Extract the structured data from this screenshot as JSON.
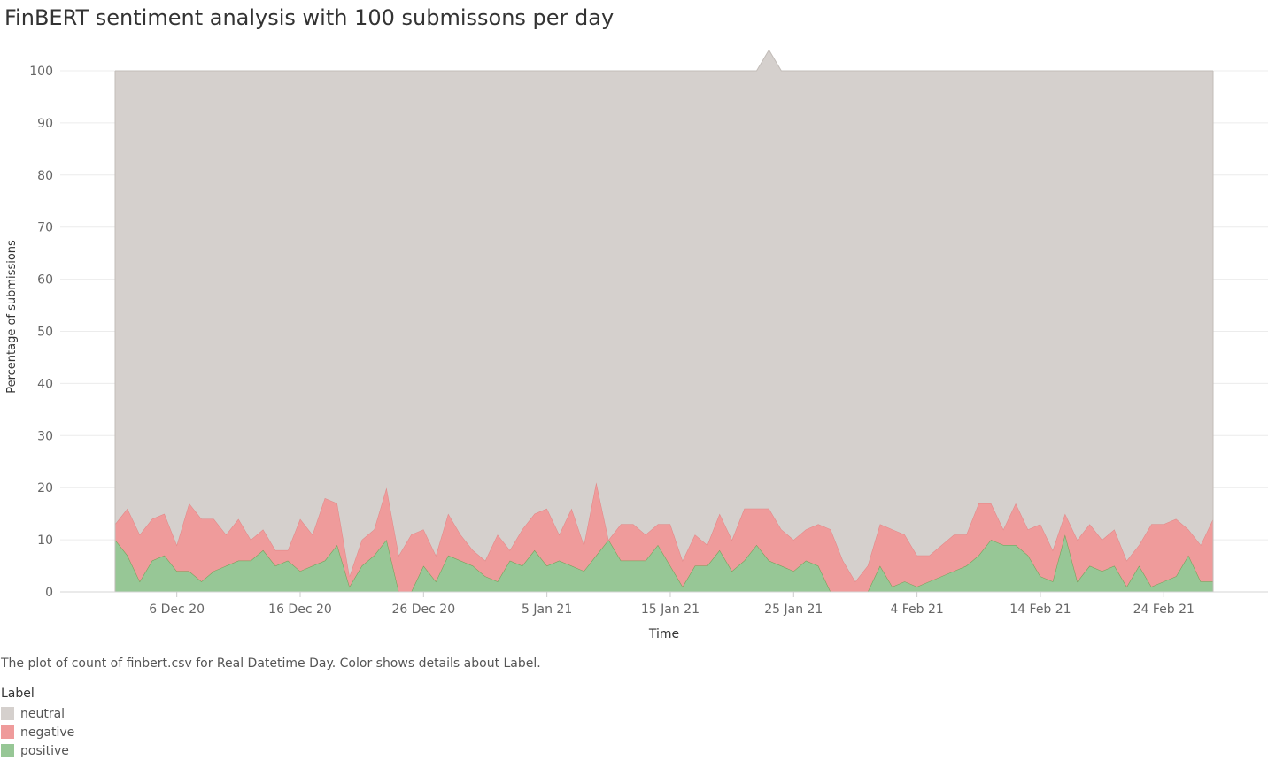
{
  "title": "FinBERT sentiment analysis with 100 submissons per day",
  "caption": "The plot of count of finbert.csv for Real Datetime Day.  Color shows details about Label.",
  "legend": {
    "title": "Label",
    "items": [
      {
        "label": "neutral",
        "color": "#d5d0cd"
      },
      {
        "label": "negative",
        "color": "#ef9b9b"
      },
      {
        "label": "positive",
        "color": "#97c796"
      }
    ]
  },
  "chart_data": {
    "type": "area",
    "stacking": "stacked, sums to 100%",
    "xlabel": "Time",
    "ylabel": "Percentage of submissions",
    "ylim": [
      0,
      100
    ],
    "x_range": [
      "2020-12-01",
      "2021-02-28"
    ],
    "yticks": [
      0,
      10,
      20,
      30,
      40,
      50,
      60,
      70,
      80,
      90,
      100
    ],
    "xticks": [
      {
        "date": "2020-12-06",
        "label": "6 Dec 20"
      },
      {
        "date": "2020-12-16",
        "label": "16 Dec 20"
      },
      {
        "date": "2020-12-26",
        "label": "26 Dec 20"
      },
      {
        "date": "2021-01-05",
        "label": "5 Jan 21"
      },
      {
        "date": "2021-01-15",
        "label": "15 Jan 21"
      },
      {
        "date": "2021-01-25",
        "label": "25 Jan 21"
      },
      {
        "date": "2021-02-04",
        "label": "4 Feb 21"
      },
      {
        "date": "2021-02-14",
        "label": "14 Feb 21"
      },
      {
        "date": "2021-02-24",
        "label": "24 Feb 21"
      }
    ],
    "grid": true,
    "legend_position": "bottom-left",
    "series": [
      {
        "name": "positive",
        "color": "#97c796",
        "values": [
          10,
          7,
          2,
          6,
          7,
          4,
          4,
          2,
          4,
          5,
          6,
          6,
          8,
          5,
          6,
          4,
          5,
          6,
          9,
          1,
          5,
          7,
          10,
          0,
          0,
          5,
          2,
          7,
          6,
          5,
          3,
          2,
          6,
          5,
          8,
          5,
          6,
          5,
          4,
          7,
          10,
          6,
          6,
          6,
          9,
          5,
          1,
          5,
          5,
          8,
          4,
          6,
          9,
          6,
          5,
          4,
          6,
          5,
          0,
          0,
          0,
          0,
          5,
          1,
          2,
          1,
          2,
          3,
          4,
          5,
          7,
          10,
          9,
          9,
          7,
          3,
          2,
          11,
          2,
          5,
          4,
          5,
          1,
          5,
          1,
          2,
          3,
          7,
          2,
          2
        ]
      },
      {
        "name": "negative",
        "color": "#ef9b9b",
        "values": [
          3,
          9,
          9,
          8,
          8,
          5,
          13,
          12,
          10,
          6,
          8,
          4,
          4,
          3,
          2,
          10,
          6,
          12,
          8,
          2,
          5,
          5,
          10,
          7,
          11,
          7,
          5,
          8,
          5,
          3,
          3,
          9,
          2,
          7,
          7,
          11,
          5,
          11,
          5,
          14,
          0,
          7,
          7,
          5,
          4,
          8,
          5,
          6,
          4,
          7,
          6,
          10,
          7,
          10,
          7,
          6,
          6,
          8,
          12,
          6,
          2,
          5,
          8,
          11,
          9,
          6,
          5,
          6,
          7,
          6,
          10,
          7,
          3,
          8,
          5,
          10,
          6,
          4,
          8,
          8,
          6,
          7,
          5,
          4,
          12,
          11,
          11,
          5,
          7,
          12
        ]
      },
      {
        "name": "neutral",
        "color": "#d5d0cd",
        "values": [
          87,
          84,
          89,
          86,
          85,
          91,
          83,
          86,
          86,
          89,
          86,
          90,
          88,
          92,
          92,
          86,
          89,
          82,
          83,
          97,
          90,
          88,
          80,
          93,
          89,
          88,
          93,
          85,
          89,
          92,
          94,
          89,
          92,
          88,
          85,
          84,
          89,
          84,
          91,
          79,
          90,
          87,
          87,
          89,
          87,
          87,
          94,
          89,
          91,
          85,
          90,
          84,
          84,
          88,
          88,
          90,
          88,
          87,
          88,
          94,
          98,
          95,
          87,
          88,
          89,
          93,
          93,
          91,
          89,
          89,
          83,
          83,
          88,
          83,
          88,
          87,
          92,
          85,
          90,
          87,
          90,
          88,
          94,
          91,
          87,
          87,
          86,
          88,
          91,
          86
        ]
      }
    ]
  }
}
